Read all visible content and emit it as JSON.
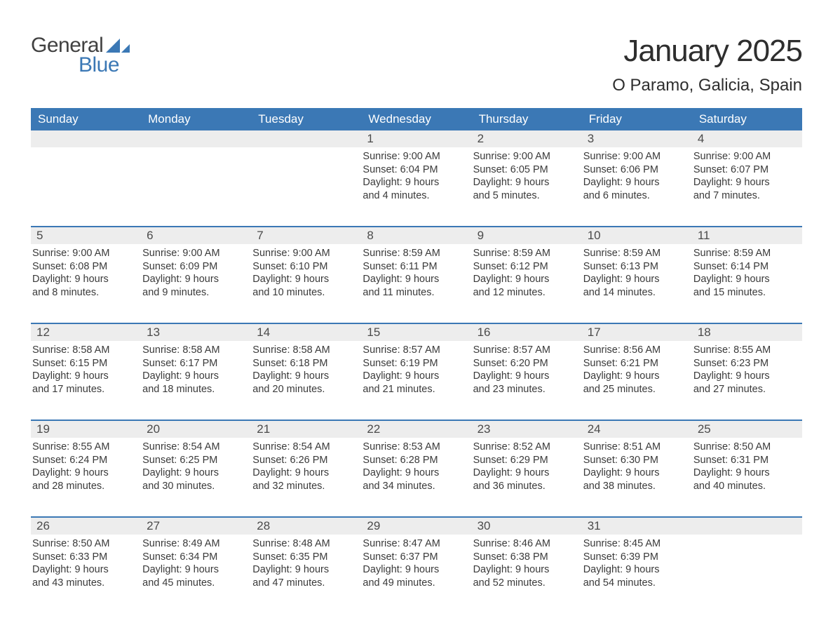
{
  "logo": {
    "text1": "General",
    "text2": "Blue",
    "color_dark": "#414141",
    "color_accent": "#3b78b5"
  },
  "title": "January 2025",
  "subtitle": "O Paramo, Galicia, Spain",
  "colors": {
    "header_bg": "#3b78b5",
    "header_text": "#ffffff",
    "daynum_bg": "#ededed",
    "daynum_text": "#4b4b4b",
    "body_text": "#3a3a3a",
    "border": "#3b78b5",
    "page_bg": "#ffffff"
  },
  "daynames": [
    "Sunday",
    "Monday",
    "Tuesday",
    "Wednesday",
    "Thursday",
    "Friday",
    "Saturday"
  ],
  "weeks": [
    [
      {
        "day": "",
        "sunrise": "",
        "sunset": "",
        "daylight1": "",
        "daylight2": ""
      },
      {
        "day": "",
        "sunrise": "",
        "sunset": "",
        "daylight1": "",
        "daylight2": ""
      },
      {
        "day": "",
        "sunrise": "",
        "sunset": "",
        "daylight1": "",
        "daylight2": ""
      },
      {
        "day": "1",
        "sunrise": "Sunrise: 9:00 AM",
        "sunset": "Sunset: 6:04 PM",
        "daylight1": "Daylight: 9 hours",
        "daylight2": "and 4 minutes."
      },
      {
        "day": "2",
        "sunrise": "Sunrise: 9:00 AM",
        "sunset": "Sunset: 6:05 PM",
        "daylight1": "Daylight: 9 hours",
        "daylight2": "and 5 minutes."
      },
      {
        "day": "3",
        "sunrise": "Sunrise: 9:00 AM",
        "sunset": "Sunset: 6:06 PM",
        "daylight1": "Daylight: 9 hours",
        "daylight2": "and 6 minutes."
      },
      {
        "day": "4",
        "sunrise": "Sunrise: 9:00 AM",
        "sunset": "Sunset: 6:07 PM",
        "daylight1": "Daylight: 9 hours",
        "daylight2": "and 7 minutes."
      }
    ],
    [
      {
        "day": "5",
        "sunrise": "Sunrise: 9:00 AM",
        "sunset": "Sunset: 6:08 PM",
        "daylight1": "Daylight: 9 hours",
        "daylight2": "and 8 minutes."
      },
      {
        "day": "6",
        "sunrise": "Sunrise: 9:00 AM",
        "sunset": "Sunset: 6:09 PM",
        "daylight1": "Daylight: 9 hours",
        "daylight2": "and 9 minutes."
      },
      {
        "day": "7",
        "sunrise": "Sunrise: 9:00 AM",
        "sunset": "Sunset: 6:10 PM",
        "daylight1": "Daylight: 9 hours",
        "daylight2": "and 10 minutes."
      },
      {
        "day": "8",
        "sunrise": "Sunrise: 8:59 AM",
        "sunset": "Sunset: 6:11 PM",
        "daylight1": "Daylight: 9 hours",
        "daylight2": "and 11 minutes."
      },
      {
        "day": "9",
        "sunrise": "Sunrise: 8:59 AM",
        "sunset": "Sunset: 6:12 PM",
        "daylight1": "Daylight: 9 hours",
        "daylight2": "and 12 minutes."
      },
      {
        "day": "10",
        "sunrise": "Sunrise: 8:59 AM",
        "sunset": "Sunset: 6:13 PM",
        "daylight1": "Daylight: 9 hours",
        "daylight2": "and 14 minutes."
      },
      {
        "day": "11",
        "sunrise": "Sunrise: 8:59 AM",
        "sunset": "Sunset: 6:14 PM",
        "daylight1": "Daylight: 9 hours",
        "daylight2": "and 15 minutes."
      }
    ],
    [
      {
        "day": "12",
        "sunrise": "Sunrise: 8:58 AM",
        "sunset": "Sunset: 6:15 PM",
        "daylight1": "Daylight: 9 hours",
        "daylight2": "and 17 minutes."
      },
      {
        "day": "13",
        "sunrise": "Sunrise: 8:58 AM",
        "sunset": "Sunset: 6:17 PM",
        "daylight1": "Daylight: 9 hours",
        "daylight2": "and 18 minutes."
      },
      {
        "day": "14",
        "sunrise": "Sunrise: 8:58 AM",
        "sunset": "Sunset: 6:18 PM",
        "daylight1": "Daylight: 9 hours",
        "daylight2": "and 20 minutes."
      },
      {
        "day": "15",
        "sunrise": "Sunrise: 8:57 AM",
        "sunset": "Sunset: 6:19 PM",
        "daylight1": "Daylight: 9 hours",
        "daylight2": "and 21 minutes."
      },
      {
        "day": "16",
        "sunrise": "Sunrise: 8:57 AM",
        "sunset": "Sunset: 6:20 PM",
        "daylight1": "Daylight: 9 hours",
        "daylight2": "and 23 minutes."
      },
      {
        "day": "17",
        "sunrise": "Sunrise: 8:56 AM",
        "sunset": "Sunset: 6:21 PM",
        "daylight1": "Daylight: 9 hours",
        "daylight2": "and 25 minutes."
      },
      {
        "day": "18",
        "sunrise": "Sunrise: 8:55 AM",
        "sunset": "Sunset: 6:23 PM",
        "daylight1": "Daylight: 9 hours",
        "daylight2": "and 27 minutes."
      }
    ],
    [
      {
        "day": "19",
        "sunrise": "Sunrise: 8:55 AM",
        "sunset": "Sunset: 6:24 PM",
        "daylight1": "Daylight: 9 hours",
        "daylight2": "and 28 minutes."
      },
      {
        "day": "20",
        "sunrise": "Sunrise: 8:54 AM",
        "sunset": "Sunset: 6:25 PM",
        "daylight1": "Daylight: 9 hours",
        "daylight2": "and 30 minutes."
      },
      {
        "day": "21",
        "sunrise": "Sunrise: 8:54 AM",
        "sunset": "Sunset: 6:26 PM",
        "daylight1": "Daylight: 9 hours",
        "daylight2": "and 32 minutes."
      },
      {
        "day": "22",
        "sunrise": "Sunrise: 8:53 AM",
        "sunset": "Sunset: 6:28 PM",
        "daylight1": "Daylight: 9 hours",
        "daylight2": "and 34 minutes."
      },
      {
        "day": "23",
        "sunrise": "Sunrise: 8:52 AM",
        "sunset": "Sunset: 6:29 PM",
        "daylight1": "Daylight: 9 hours",
        "daylight2": "and 36 minutes."
      },
      {
        "day": "24",
        "sunrise": "Sunrise: 8:51 AM",
        "sunset": "Sunset: 6:30 PM",
        "daylight1": "Daylight: 9 hours",
        "daylight2": "and 38 minutes."
      },
      {
        "day": "25",
        "sunrise": "Sunrise: 8:50 AM",
        "sunset": "Sunset: 6:31 PM",
        "daylight1": "Daylight: 9 hours",
        "daylight2": "and 40 minutes."
      }
    ],
    [
      {
        "day": "26",
        "sunrise": "Sunrise: 8:50 AM",
        "sunset": "Sunset: 6:33 PM",
        "daylight1": "Daylight: 9 hours",
        "daylight2": "and 43 minutes."
      },
      {
        "day": "27",
        "sunrise": "Sunrise: 8:49 AM",
        "sunset": "Sunset: 6:34 PM",
        "daylight1": "Daylight: 9 hours",
        "daylight2": "and 45 minutes."
      },
      {
        "day": "28",
        "sunrise": "Sunrise: 8:48 AM",
        "sunset": "Sunset: 6:35 PM",
        "daylight1": "Daylight: 9 hours",
        "daylight2": "and 47 minutes."
      },
      {
        "day": "29",
        "sunrise": "Sunrise: 8:47 AM",
        "sunset": "Sunset: 6:37 PM",
        "daylight1": "Daylight: 9 hours",
        "daylight2": "and 49 minutes."
      },
      {
        "day": "30",
        "sunrise": "Sunrise: 8:46 AM",
        "sunset": "Sunset: 6:38 PM",
        "daylight1": "Daylight: 9 hours",
        "daylight2": "and 52 minutes."
      },
      {
        "day": "31",
        "sunrise": "Sunrise: 8:45 AM",
        "sunset": "Sunset: 6:39 PM",
        "daylight1": "Daylight: 9 hours",
        "daylight2": "and 54 minutes."
      },
      {
        "day": "",
        "sunrise": "",
        "sunset": "",
        "daylight1": "",
        "daylight2": ""
      }
    ]
  ]
}
